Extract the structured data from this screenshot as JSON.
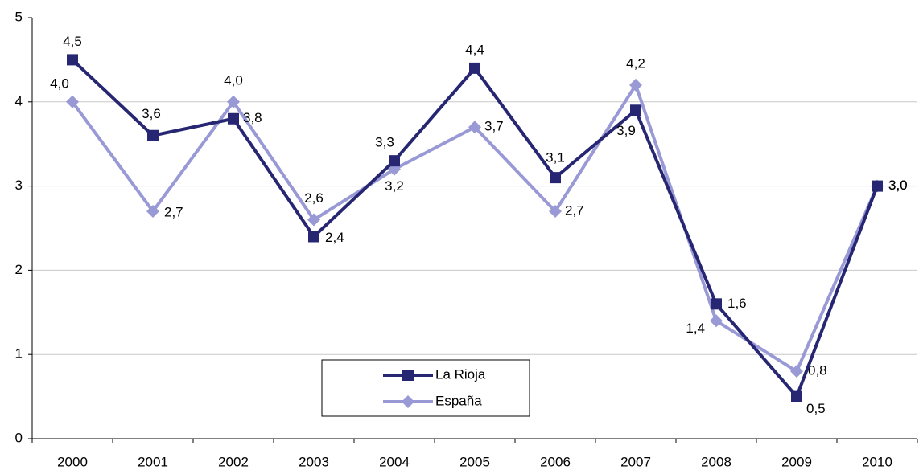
{
  "chart_data": {
    "type": "line",
    "categories": [
      "2000",
      "2001",
      "2002",
      "2003",
      "2004",
      "2005",
      "2006",
      "2007",
      "2008",
      "2009",
      "2010"
    ],
    "series": [
      {
        "name": "La Rioja",
        "color": "#262673",
        "marker": "square",
        "values": [
          4.5,
          3.6,
          3.8,
          2.4,
          3.3,
          4.4,
          3.1,
          3.9,
          1.6,
          0.5,
          3.0
        ],
        "value_labels": [
          "4,5",
          "3,6",
          "3,8",
          "2,4",
          "3,3",
          "4,4",
          "3,1",
          "3,9",
          "1,6",
          "0,5",
          "3,0"
        ]
      },
      {
        "name": "España",
        "color": "#9999d6",
        "marker": "diamond",
        "values": [
          4.0,
          2.7,
          4.0,
          2.6,
          3.2,
          3.7,
          2.7,
          4.2,
          1.4,
          0.8,
          3.0
        ],
        "value_labels": [
          "4,0",
          "2,7",
          "4,0",
          "2,6",
          "3,2",
          "3,7",
          "2,7",
          "4,2",
          "1,4",
          "0,8",
          "3,0"
        ]
      }
    ],
    "ylim": [
      0,
      5
    ],
    "yticks": [
      0,
      1,
      2,
      3,
      4,
      5
    ],
    "grid": true
  }
}
